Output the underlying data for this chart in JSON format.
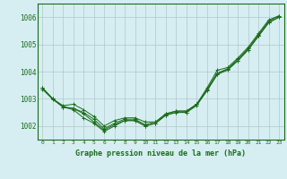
{
  "title": "Graphe pression niveau de la mer (hPa)",
  "background_color": "#d6eef2",
  "grid_color": "#b0c8c8",
  "line_color": "#1a6b1a",
  "xlim": [
    -0.5,
    23.5
  ],
  "ylim": [
    1001.5,
    1006.5
  ],
  "yticks": [
    1002,
    1003,
    1004,
    1005,
    1006
  ],
  "xticks": [
    0,
    1,
    2,
    3,
    4,
    5,
    6,
    7,
    8,
    9,
    10,
    11,
    12,
    13,
    14,
    15,
    16,
    17,
    18,
    19,
    20,
    21,
    22,
    23
  ],
  "series": [
    [
      1003.4,
      1003.0,
      1002.7,
      1002.6,
      1002.3,
      1002.1,
      1001.8,
      1002.0,
      1002.2,
      1002.2,
      1002.0,
      1002.1,
      1002.4,
      1002.5,
      1002.5,
      1002.8,
      1003.3,
      1003.9,
      1004.1,
      1004.4,
      1004.8,
      1005.3,
      1005.8,
      1006.0
    ],
    [
      1003.4,
      1003.0,
      1002.75,
      1002.8,
      1002.6,
      1002.35,
      1002.0,
      1002.2,
      1002.3,
      1002.3,
      1002.15,
      1002.15,
      1002.45,
      1002.55,
      1002.55,
      1002.8,
      1003.35,
      1003.95,
      1004.1,
      1004.45,
      1004.85,
      1005.35,
      1005.85,
      1006.05
    ],
    [
      1003.4,
      1003.0,
      1002.7,
      1002.65,
      1002.45,
      1002.15,
      1001.85,
      1002.05,
      1002.2,
      1002.2,
      1002.0,
      1002.1,
      1002.4,
      1002.5,
      1002.5,
      1002.75,
      1003.3,
      1003.9,
      1004.05,
      1004.4,
      1004.8,
      1005.3,
      1005.8,
      1006.0
    ],
    [
      1003.35,
      1002.98,
      1002.7,
      1002.65,
      1002.5,
      1002.25,
      1001.9,
      1002.1,
      1002.25,
      1002.25,
      1002.05,
      1002.15,
      1002.45,
      1002.55,
      1002.55,
      1002.8,
      1003.4,
      1004.05,
      1004.15,
      1004.5,
      1004.9,
      1005.4,
      1005.9,
      1006.05
    ]
  ]
}
